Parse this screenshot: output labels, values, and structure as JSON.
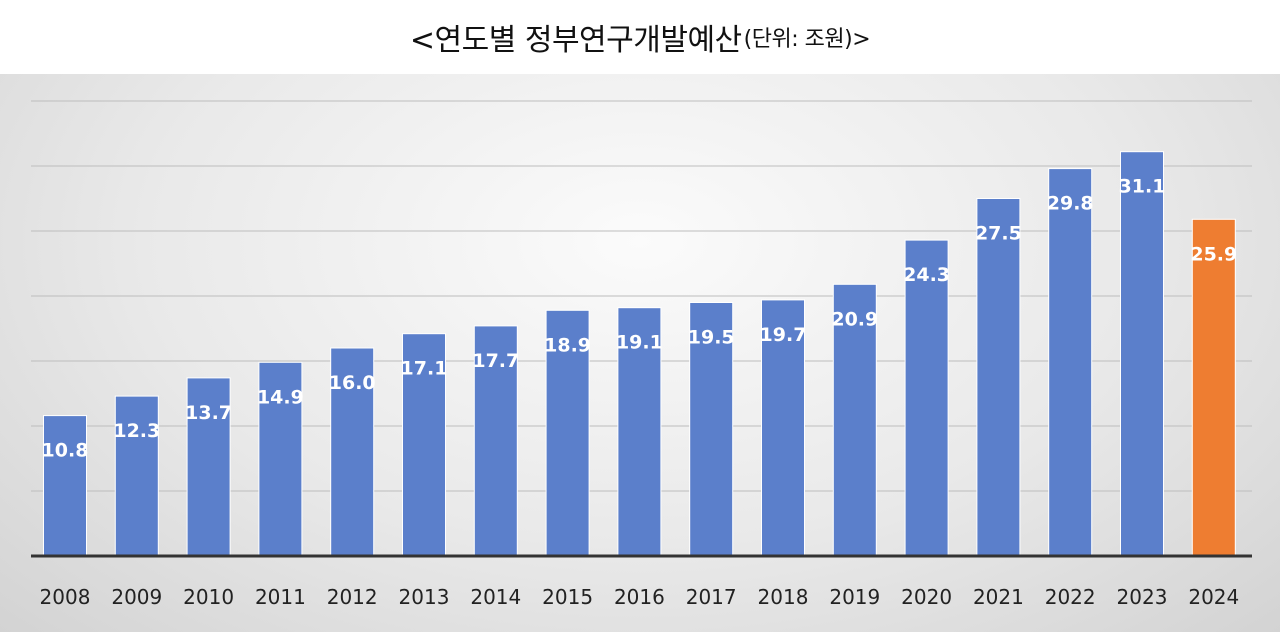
{
  "chart_data": {
    "type": "bar",
    "title": "<연도별 정부연구개발예산",
    "unit_label": "(단위: 조원)>",
    "title_suffix": "",
    "categories": [
      "2008",
      "2009",
      "2010",
      "2011",
      "2012",
      "2013",
      "2014",
      "2015",
      "2016",
      "2017",
      "2018",
      "2019",
      "2020",
      "2021",
      "2022",
      "2023",
      "2024"
    ],
    "values": [
      10.8,
      12.3,
      13.7,
      14.9,
      16.0,
      17.1,
      17.7,
      18.9,
      19.1,
      19.5,
      19.7,
      20.9,
      24.3,
      27.5,
      29.8,
      31.1,
      25.9
    ],
    "value_labels": [
      "10.8",
      "12.3",
      "13.7",
      "14.9",
      "16.0",
      "17.1",
      "17.7",
      "18.9",
      "19.1",
      "19.5",
      "19.7",
      "20.9",
      "24.3",
      "27.5",
      "29.8",
      "31.1",
      "25.9"
    ],
    "bar_color": "#5b7fcb",
    "highlight_color": "#ee7d31",
    "highlight_index": 16,
    "ylim": [
      0,
      35
    ],
    "grid": true,
    "legend": "none"
  }
}
